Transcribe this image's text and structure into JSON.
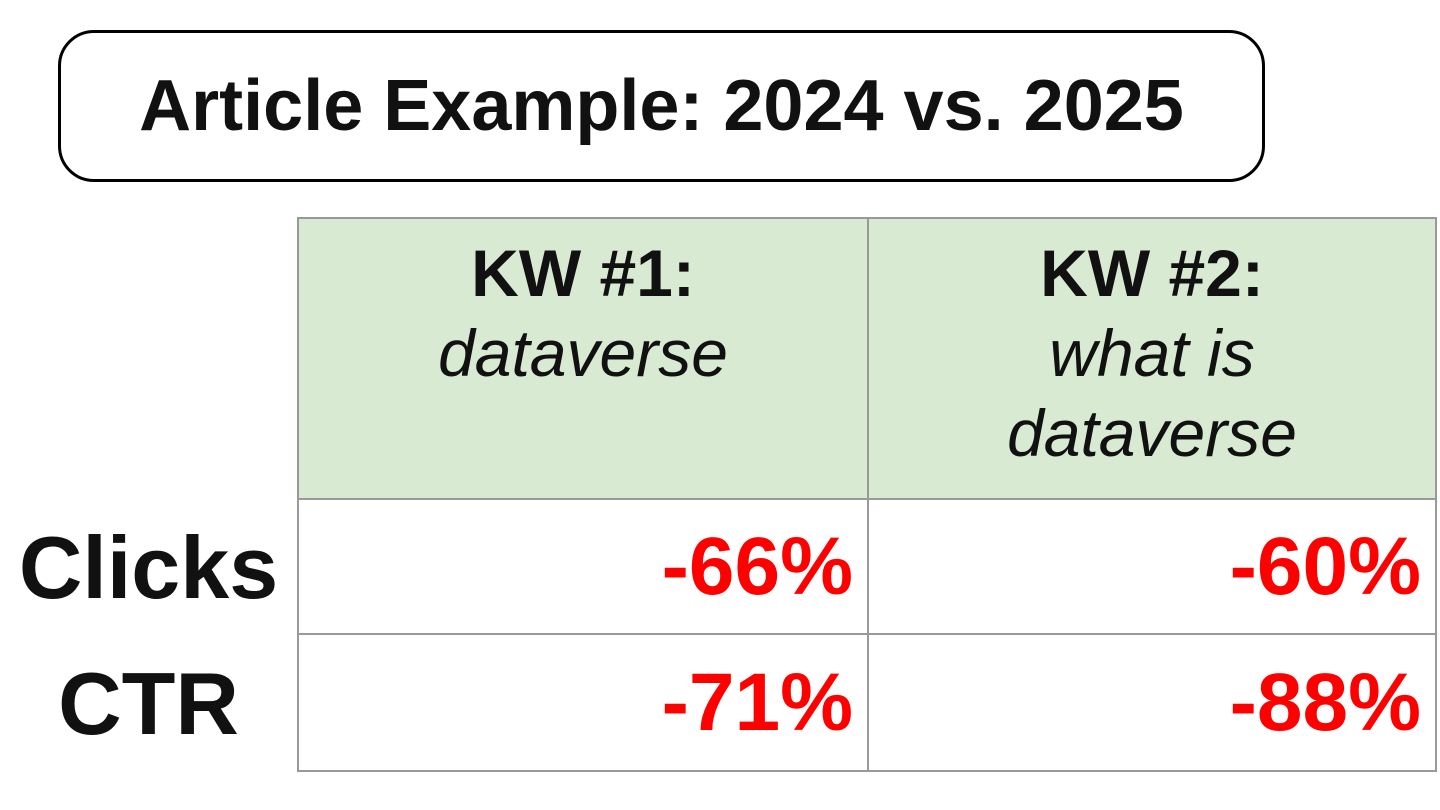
{
  "title": "Article Example: 2024 vs. 2025",
  "table": {
    "columns": [
      {
        "label": "KW #1:",
        "keyword": "dataverse"
      },
      {
        "label": "KW #2:",
        "keyword": "what is\ndataverse"
      }
    ],
    "rows": [
      {
        "label": "Clicks",
        "values": [
          "-66%",
          "-60%"
        ]
      },
      {
        "label": "CTR",
        "values": [
          "-71%",
          "-88%"
        ]
      }
    ]
  },
  "colors": {
    "header_bg": "#d9ead3",
    "negative": "#ff0000",
    "border": "#999999",
    "ink": "#111111"
  },
  "chart_data": {
    "type": "table",
    "title": "Article Example: 2024 vs. 2025",
    "categories": [
      "KW #1: dataverse",
      "KW #2: what is dataverse"
    ],
    "series": [
      {
        "name": "Clicks",
        "values": [
          -66,
          -60
        ],
        "unit": "%"
      },
      {
        "name": "CTR",
        "values": [
          -71,
          -88
        ],
        "unit": "%"
      }
    ],
    "layout_hints": {
      "header_background": "#d9ead3",
      "value_color": "#ff0000",
      "values_alignment": "right",
      "row_labels_position": "outside-left"
    }
  }
}
